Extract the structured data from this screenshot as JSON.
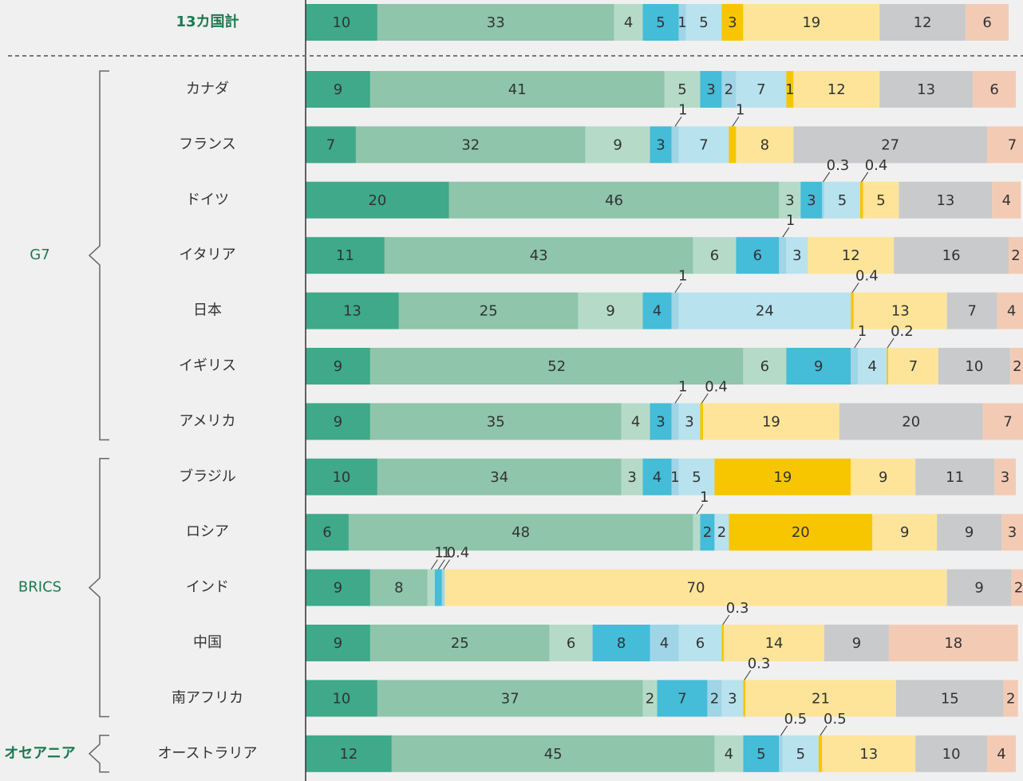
{
  "chart_data": {
    "type": "stacked_bar_100",
    "categories": [
      "13カ国計",
      "カナダ",
      "フランス",
      "ドイツ",
      "イタリア",
      "日本",
      "イギリス",
      "アメリカ",
      "ブラジル",
      "ロシア",
      "インド",
      "中国",
      "南アフリカ",
      "オーストラリア"
    ],
    "groups": [
      {
        "label": "G7",
        "count": 7
      },
      {
        "label": "BRICS",
        "count": 5
      },
      {
        "label": "オセアニア",
        "count": 1
      }
    ],
    "xlim": [
      0,
      100
    ],
    "series": [
      {
        "color": "#3fa98a",
        "values": [
          10,
          9,
          7,
          20,
          11,
          13,
          9,
          9,
          10,
          6,
          9,
          9,
          10,
          12
        ]
      },
      {
        "color": "#8ec5ab",
        "values": [
          33,
          41,
          32,
          46,
          43,
          25,
          52,
          35,
          34,
          48,
          8,
          25,
          37,
          45
        ]
      },
      {
        "color": "#b5dbc8",
        "values": [
          4,
          5,
          9,
          3,
          6,
          9,
          6,
          4,
          3,
          1,
          1,
          6,
          2,
          4
        ]
      },
      {
        "color": "#45bcd8",
        "values": [
          5,
          3,
          3,
          3,
          6,
          4,
          9,
          3,
          4,
          2,
          1,
          8,
          7,
          5
        ]
      },
      {
        "color": "#9fd5e6",
        "values": [
          1,
          2,
          1,
          0.3,
          1,
          1,
          1,
          1,
          1,
          null,
          0.4,
          4,
          2,
          0.5
        ]
      },
      {
        "color": "#b8e2ee",
        "values": [
          5,
          7,
          7,
          5,
          3,
          24,
          4,
          3,
          5,
          2,
          null,
          6,
          3,
          5
        ]
      },
      {
        "color": "#f7c600",
        "values": [
          3,
          1,
          1,
          0.4,
          null,
          0.4,
          0.2,
          0.4,
          19,
          20,
          null,
          0.3,
          0.3,
          0.5
        ]
      },
      {
        "color": "#fde499",
        "values": [
          19,
          12,
          8,
          5,
          12,
          13,
          7,
          19,
          9,
          9,
          70,
          14,
          21,
          13
        ]
      },
      {
        "color": "#c8cacc",
        "values": [
          12,
          13,
          27,
          13,
          16,
          7,
          10,
          20,
          11,
          9,
          9,
          9,
          15,
          10
        ]
      },
      {
        "color": "#f3cbb5",
        "values": [
          6,
          6,
          7,
          4,
          2,
          4,
          2,
          7,
          3,
          3,
          2,
          18,
          2,
          4
        ]
      }
    ]
  }
}
